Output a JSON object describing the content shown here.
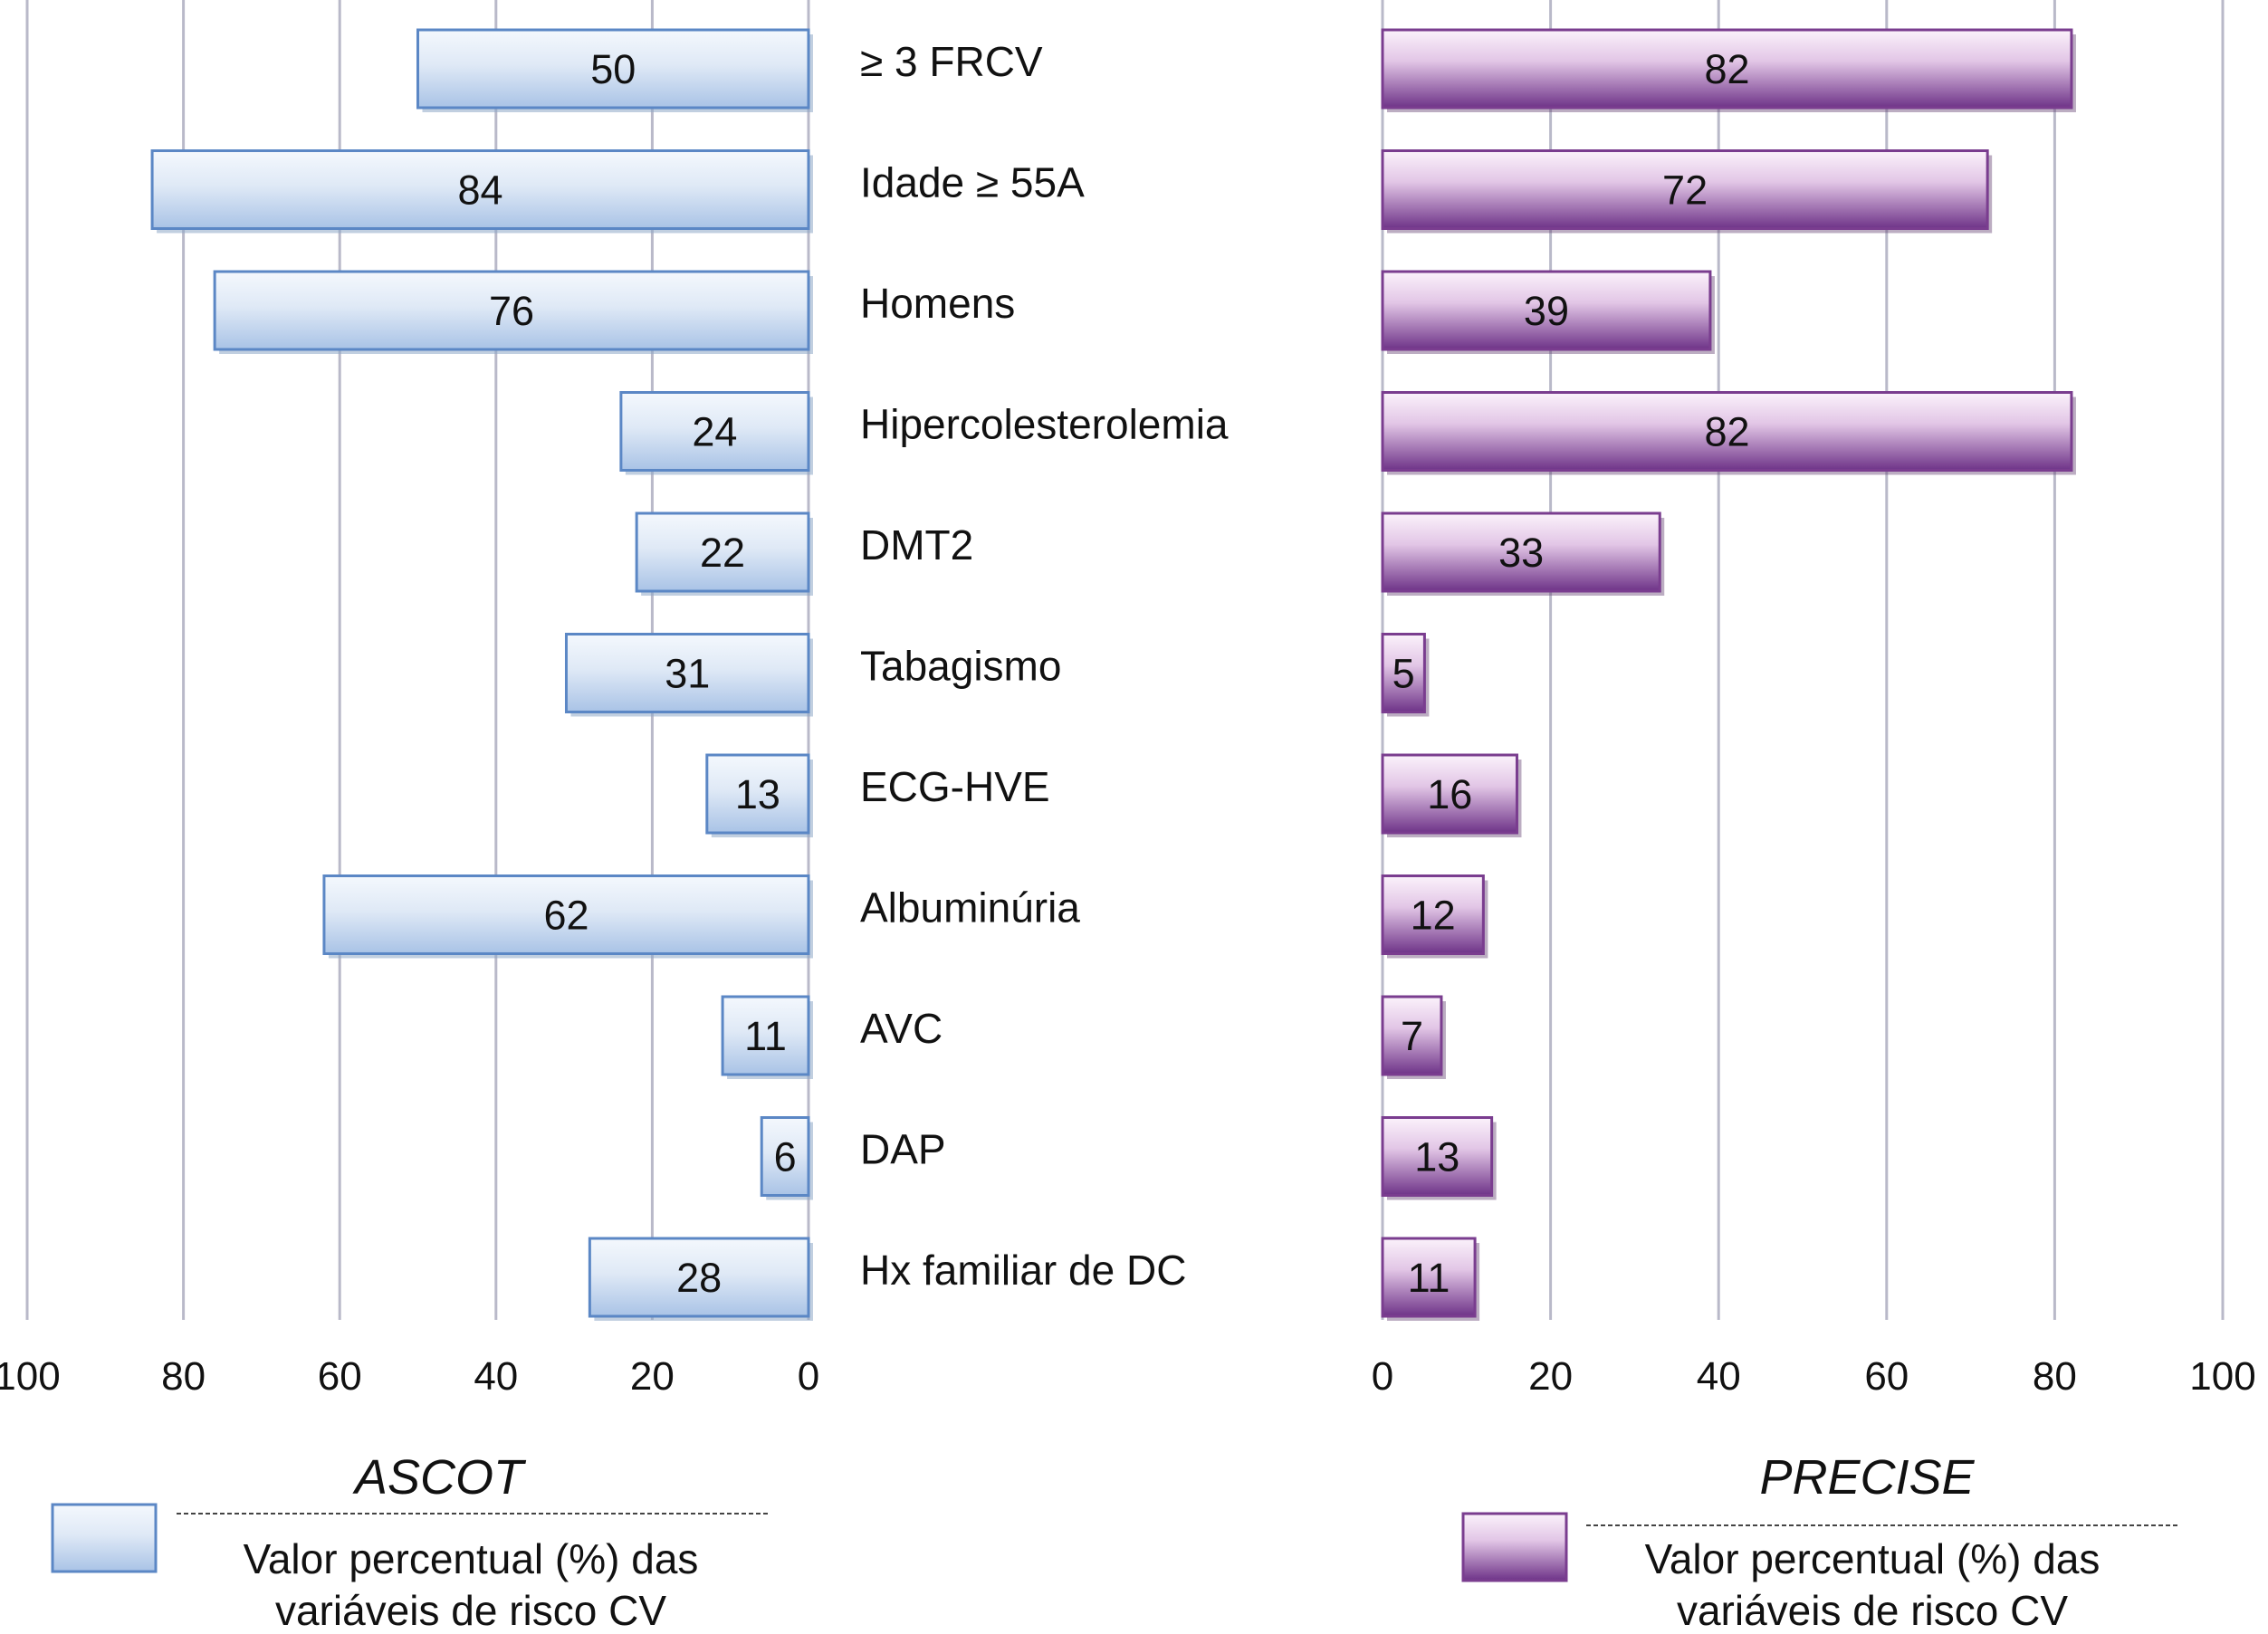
{
  "chart_data": {
    "type": "bar",
    "orientation": "horizontal-butterfly",
    "categories": [
      "≥ 3 FRCV",
      "Idade ≥ 55A",
      "Homens",
      "Hipercolesterolemia",
      "DMT2",
      "Tabagismo",
      "ECG-HVE",
      "Albuminúria",
      "AVC",
      "DAP",
      "Hx familiar de DC"
    ],
    "series": [
      {
        "name": "ASCOT",
        "values": [
          50,
          84,
          76,
          24,
          22,
          31,
          13,
          62,
          11,
          6,
          28
        ],
        "color": "#5b87c5",
        "fill_light": "#eef4fb",
        "fill_mid": "#c3d6ee"
      },
      {
        "name": "PRECISE",
        "values": [
          82,
          72,
          39,
          82,
          33,
          5,
          16,
          12,
          7,
          13,
          11
        ],
        "color": "#7a3d8f",
        "fill_light": "#f5e8f5",
        "fill_mid": "#8a4aa0"
      }
    ],
    "xlim": [
      0,
      100
    ],
    "ticks": [
      "0",
      "20",
      "40",
      "60",
      "80",
      "100"
    ],
    "left_ticks": [
      "100",
      "80",
      "60",
      "40",
      "20",
      "0"
    ],
    "grid": true
  },
  "legend": {
    "ascot": {
      "title": "ASCOT",
      "line1": "Valor percentual (%) das",
      "line2": "variáveis de risco CV"
    },
    "precise": {
      "title": "PRECISE",
      "line1": "Valor percentual (%) das",
      "line2": "variáveis de risco CV"
    }
  }
}
